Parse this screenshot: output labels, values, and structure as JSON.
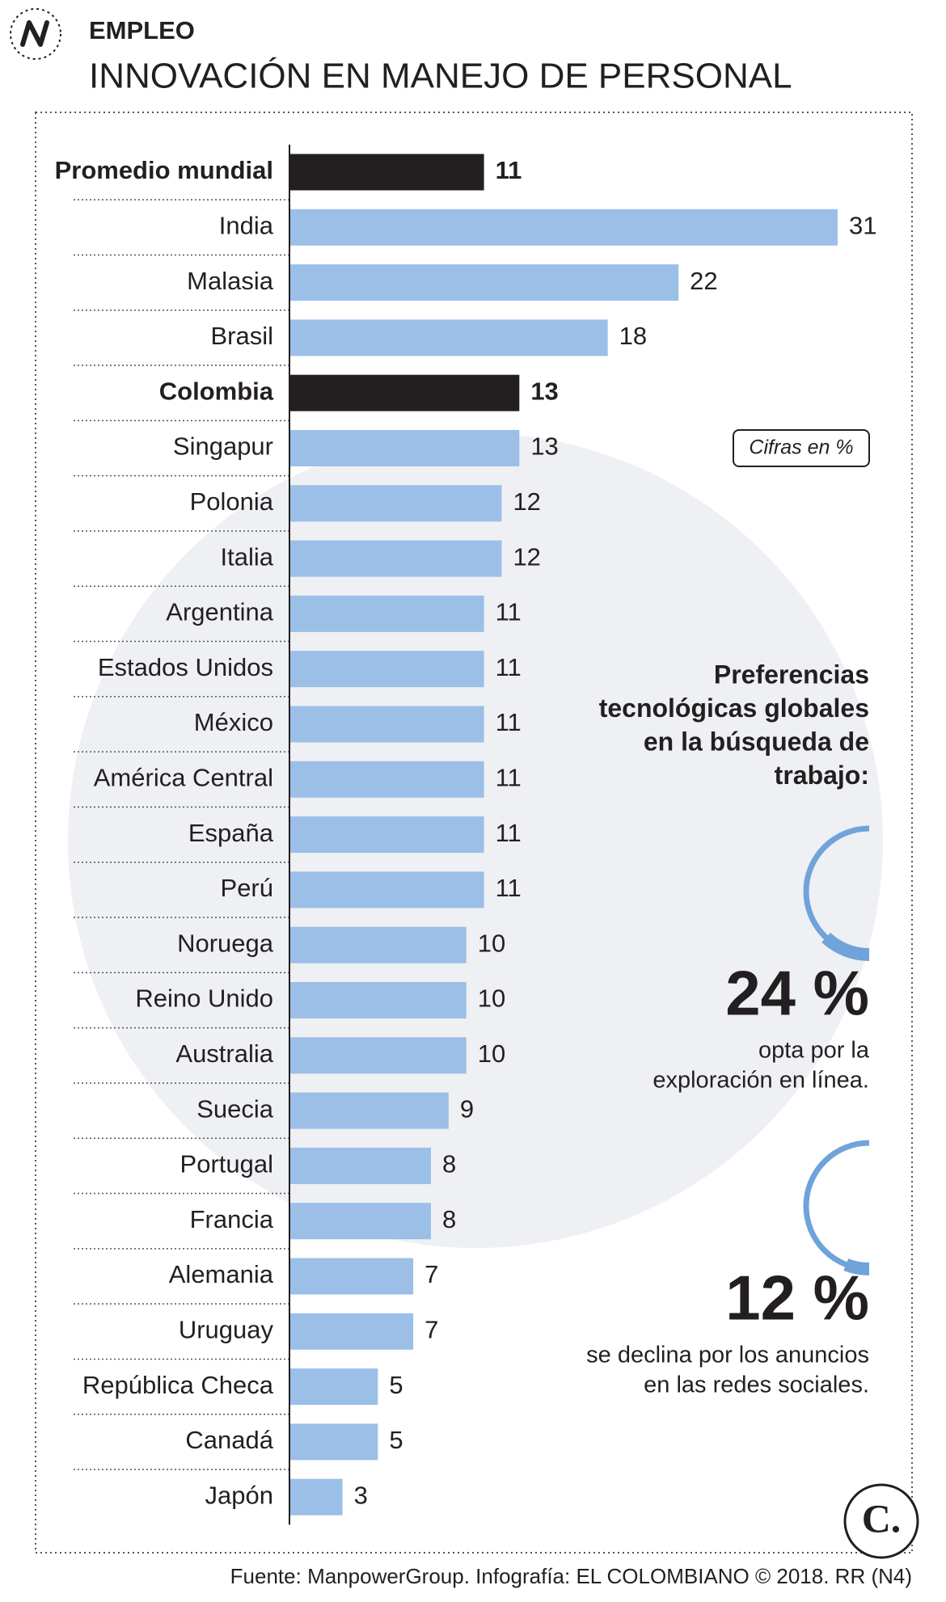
{
  "section": "EMPLEO",
  "logo": "C.",
  "source": "Fuente: ManpowerGroup. Infografía: EL COLOMBIANO © 2018. RR (N4)",
  "chart_data": {
    "type": "bar",
    "orientation": "horizontal",
    "title": "INNOVACIÓN EN MANEJO DE PERSONAL",
    "annotation": "Cifras en %",
    "categories": [
      "Promedio mundial",
      "India",
      "Malasia",
      "Brasil",
      "Colombia",
      "Singapur",
      "Polonia",
      "Italia",
      "Argentina",
      "Estados Unidos",
      "México",
      "América Central",
      "España",
      "Perú",
      "Noruega",
      "Reino Unido",
      "Australia",
      "Suecia",
      "Portugal",
      "Francia",
      "Alemania",
      "Uruguay",
      "República Checa",
      "Canadá",
      "Japón"
    ],
    "values": [
      11,
      31,
      22,
      18,
      13,
      13,
      12,
      12,
      11,
      11,
      11,
      11,
      11,
      11,
      10,
      10,
      10,
      9,
      8,
      8,
      7,
      7,
      5,
      5,
      3
    ],
    "colors": [
      "#231f20",
      "#9bbfe7",
      "#9bbfe7",
      "#9bbfe7",
      "#231f20",
      "#9bbfe7",
      "#9bbfe7",
      "#9bbfe7",
      "#9bbfe7",
      "#9bbfe7",
      "#9bbfe7",
      "#9bbfe7",
      "#9bbfe7",
      "#9bbfe7",
      "#9bbfe7",
      "#9bbfe7",
      "#9bbfe7",
      "#9bbfe7",
      "#9bbfe7",
      "#9bbfe7",
      "#9bbfe7",
      "#9bbfe7",
      "#9bbfe7",
      "#9bbfe7",
      "#9bbfe7"
    ],
    "highlight_color": "#231f20",
    "xlim": [
      0,
      31
    ]
  },
  "panel": {
    "title": [
      "Preferencias",
      "tecnológicas globales",
      "en la búsqueda de",
      "trabajo:"
    ],
    "color": "#6fa3da",
    "stats": [
      {
        "value": 24,
        "value_label": "24 %",
        "text": [
          "opta por la",
          "exploración en línea."
        ]
      },
      {
        "value": 12,
        "value_label": "12 %",
        "text": [
          "se declina por los anuncios",
          "en las redes sociales."
        ]
      }
    ]
  }
}
